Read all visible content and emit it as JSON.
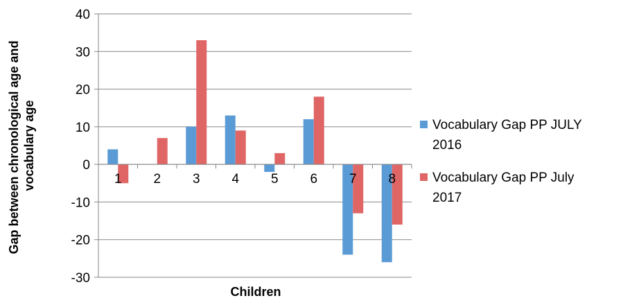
{
  "chart_data": {
    "type": "bar",
    "title": "",
    "xlabel": "Children",
    "ylabel": "Gap between chronological age and vocabulary age",
    "ylabel_lines": [
      "Gap between chronological age and",
      "vocabulary age"
    ],
    "categories": [
      "1",
      "2",
      "3",
      "4",
      "5",
      "6",
      "7",
      "8"
    ],
    "series": [
      {
        "name": "Vocabulary Gap PP JULY 2016",
        "name_lines": [
          "Vocabulary Gap PP JULY",
          "2016"
        ],
        "color": "#5B9BD5",
        "values": [
          4,
          0,
          10,
          13,
          -2,
          12,
          -24,
          -26
        ]
      },
      {
        "name": "Vocabulary Gap PP  July 2017",
        "name_lines": [
          "Vocabulary Gap PP  July",
          "2017"
        ],
        "color": "#E06666",
        "values": [
          -5,
          7,
          33,
          9,
          3,
          18,
          -13,
          -16
        ]
      }
    ],
    "ylim": [
      -30,
      40
    ],
    "yticks": [
      -30,
      -20,
      -10,
      0,
      10,
      20,
      30,
      40
    ],
    "grid": true,
    "legend": "right"
  }
}
